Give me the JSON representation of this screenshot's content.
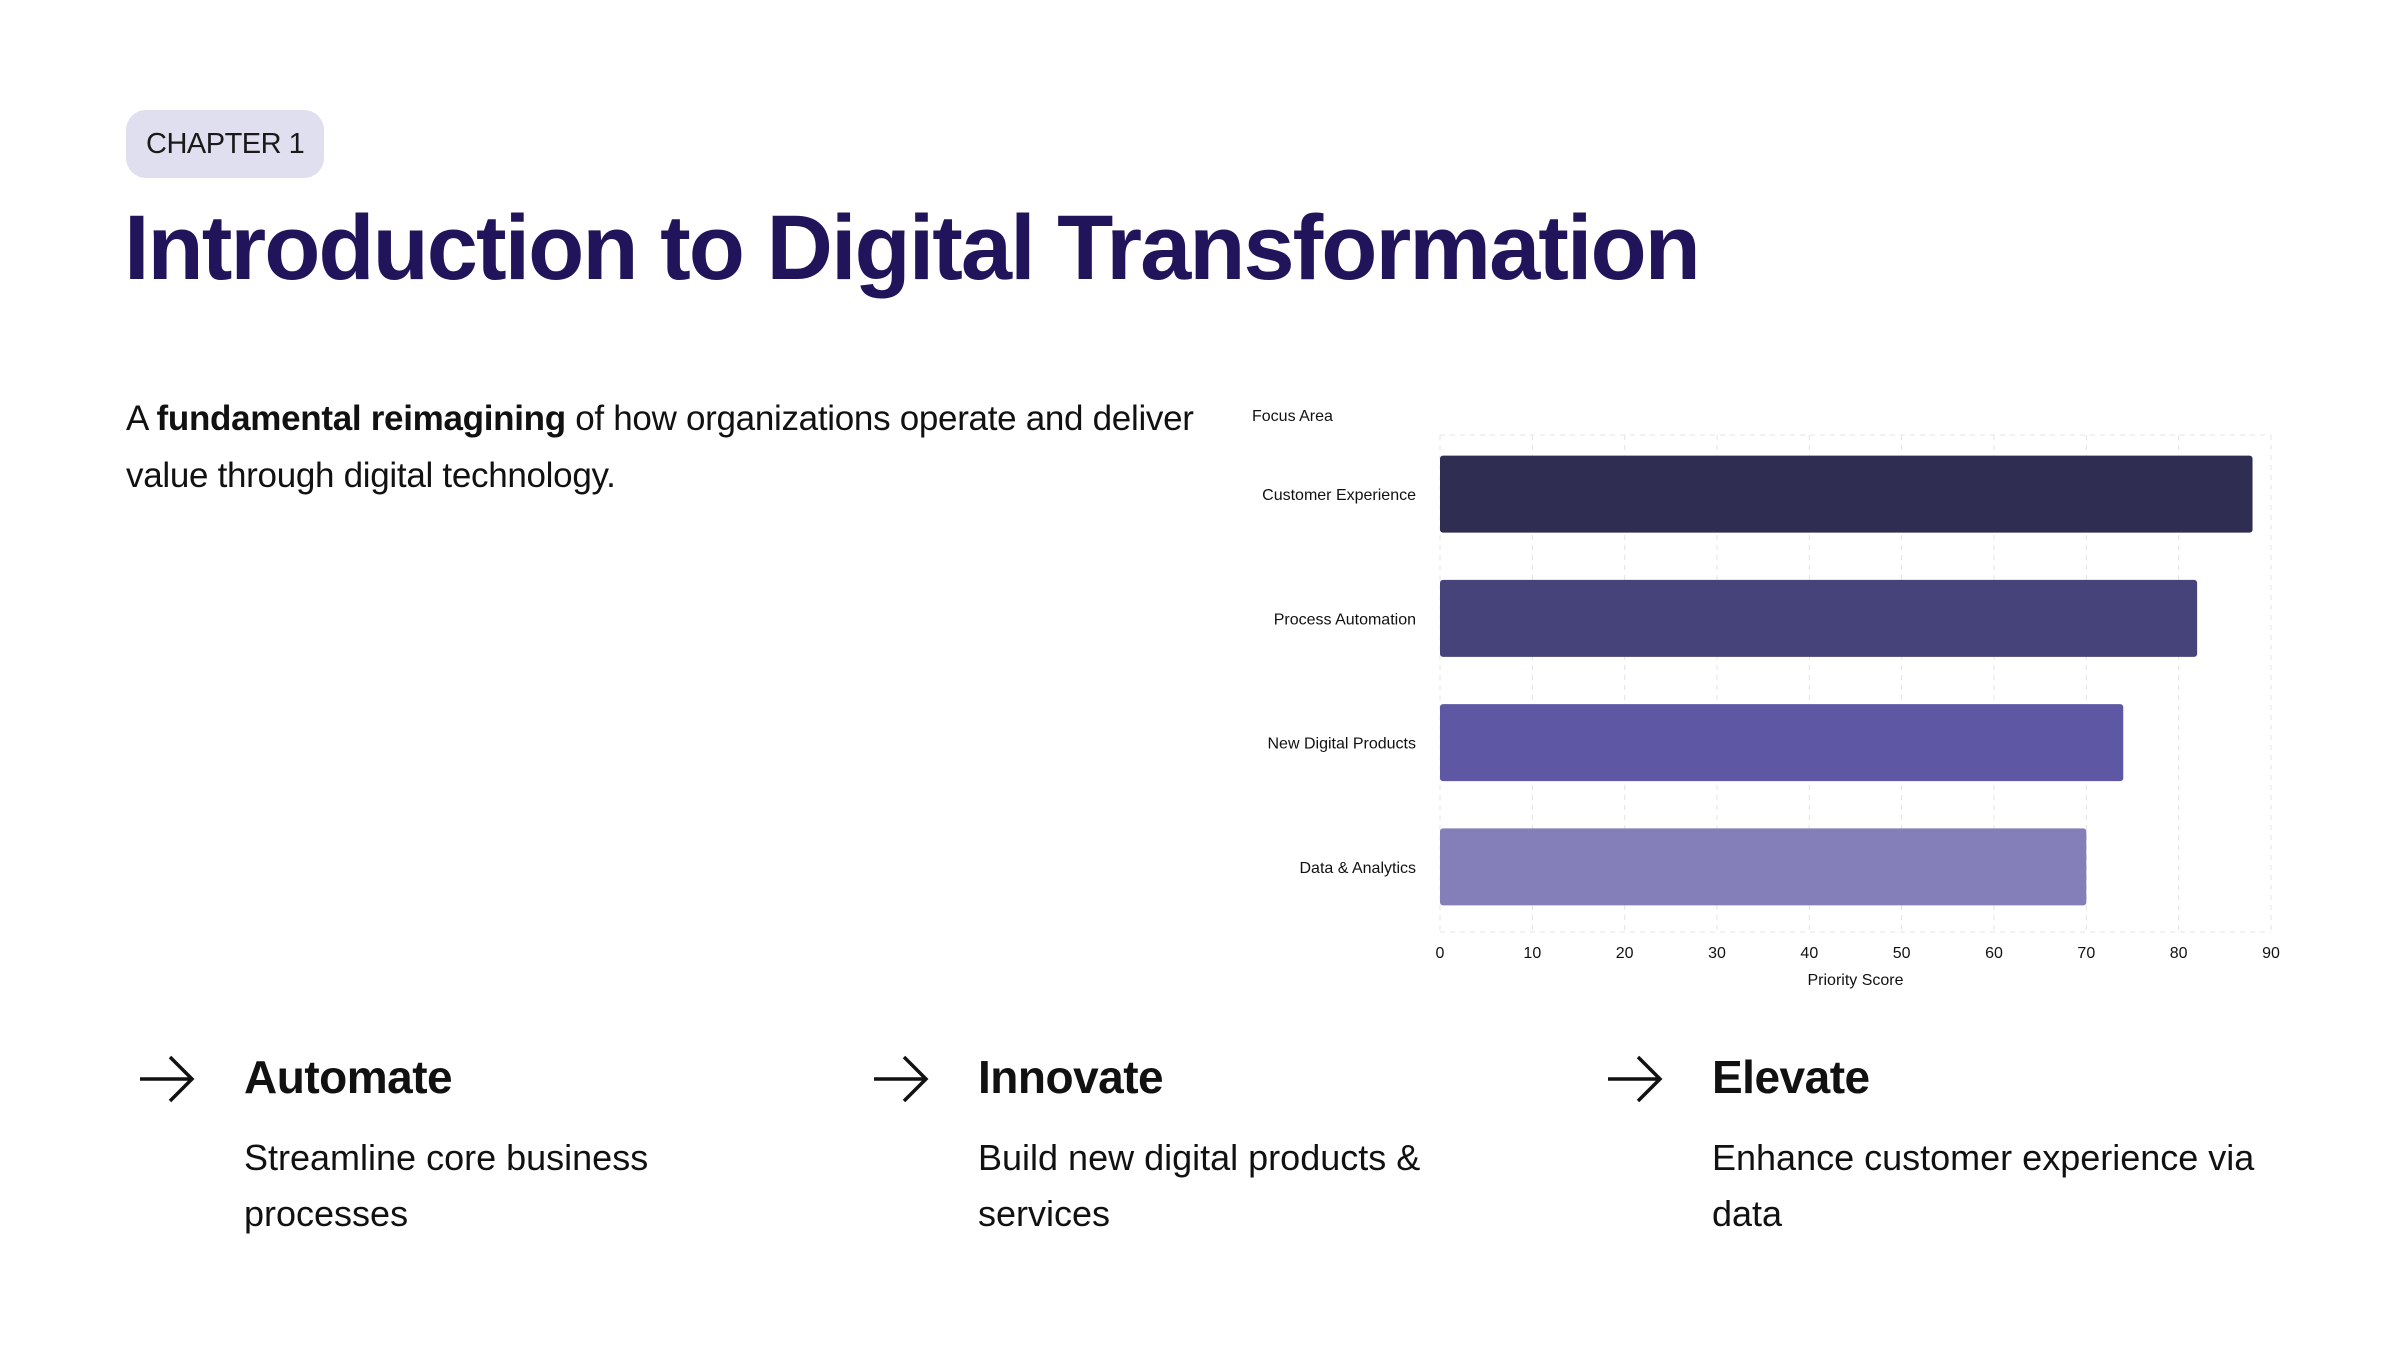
{
  "header": {
    "chapter_label": "CHAPTER 1",
    "title": "Introduction to Digital Transformation"
  },
  "lead": {
    "prefix": "A ",
    "emphasis": "fundamental reimagining",
    "suffix": " of how organizations operate and deliver value through digital technology."
  },
  "chart_data": {
    "type": "bar",
    "orientation": "horizontal",
    "categories": [
      "Customer Experience",
      "Process Automation",
      "New Digital Products",
      "Data & Analytics"
    ],
    "values": [
      88,
      82,
      74,
      70
    ],
    "colors": [
      "#2f2d51",
      "#46437a",
      "#5e57a3",
      "#847fb9"
    ],
    "xlabel": "Priority Score",
    "ylabel": "Focus Area",
    "xlim": [
      0,
      90
    ],
    "xticks": [
      0,
      10,
      20,
      30,
      40,
      50,
      60,
      70,
      80,
      90
    ],
    "grid": true
  },
  "pillars": [
    {
      "icon": "arrow-right-icon",
      "title": "Automate",
      "description": "Streamline core business processes"
    },
    {
      "icon": "arrow-right-icon",
      "title": "Innovate",
      "description": "Build new digital products & services"
    },
    {
      "icon": "arrow-right-icon",
      "title": "Elevate",
      "description": "Enhance customer experience via data"
    }
  ],
  "colors": {
    "title": "#22145a",
    "badge_bg": "#e0dfef"
  }
}
